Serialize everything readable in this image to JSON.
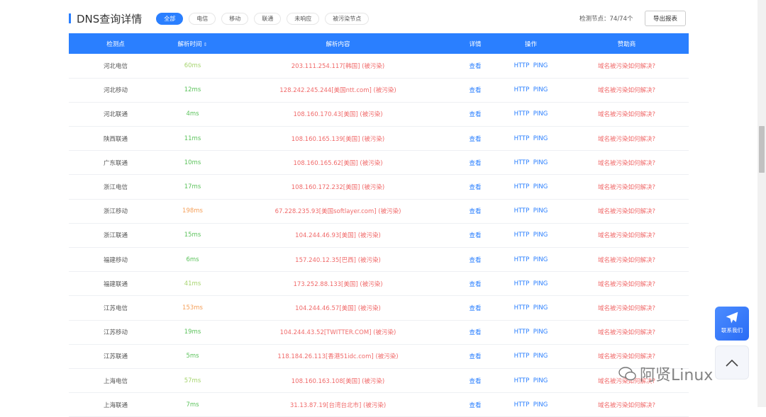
{
  "title": "DNS查询详情",
  "filters": [
    "全部",
    "电信",
    "移动",
    "联通",
    "未响应",
    "被污染节点"
  ],
  "active_filter": "全部",
  "nodes_label": "检测节点：74/74个",
  "export_label": "导出报表",
  "columns": [
    "检测点",
    "解析时间",
    "解析内容",
    "详情",
    "操作",
    "赞助商"
  ],
  "rows": [
    {
      "loc": "河北电信",
      "time": "60ms",
      "ip": "203.111.254.117[韩国]",
      "status": "(被污染)"
    },
    {
      "loc": "河北移动",
      "time": "12ms",
      "ip": "128.242.245.244[美国ntt.com]",
      "status": "(被污染)"
    },
    {
      "loc": "河北联通",
      "time": "4ms",
      "ip": "108.160.170.43[美国]",
      "status": "(被污染)"
    },
    {
      "loc": "陕西联通",
      "time": "11ms",
      "ip": "108.160.165.139[美国]",
      "status": "(被污染)"
    },
    {
      "loc": "广东联通",
      "time": "10ms",
      "ip": "108.160.165.62[美国]",
      "status": "(被污染)"
    },
    {
      "loc": "浙江电信",
      "time": "17ms",
      "ip": "108.160.172.232[美国]",
      "status": "(被污染)"
    },
    {
      "loc": "浙江移动",
      "time": "198ms",
      "ip": "67.228.235.93[美国softlayer.com]",
      "status": "(被污染)"
    },
    {
      "loc": "浙江联通",
      "time": "15ms",
      "ip": "104.244.46.93[美国]",
      "status": "(被污染)"
    },
    {
      "loc": "福建移动",
      "time": "6ms",
      "ip": "157.240.12.35[巴西]",
      "status": "(被污染)"
    },
    {
      "loc": "福建联通",
      "time": "41ms",
      "ip": "173.252.88.133[美国]",
      "status": "(被污染)"
    },
    {
      "loc": "江苏电信",
      "time": "153ms",
      "ip": "104.244.46.57[美国]",
      "status": "(被污染)"
    },
    {
      "loc": "江苏移动",
      "time": "19ms",
      "ip": "104.244.43.52[TWITTER.COM]",
      "status": "(被污染)"
    },
    {
      "loc": "江苏联通",
      "time": "5ms",
      "ip": "118.184.26.113[香港51idc.com]",
      "status": "(被污染)"
    },
    {
      "loc": "上海电信",
      "time": "57ms",
      "ip": "108.160.163.108[美国]",
      "status": "(被污染)"
    },
    {
      "loc": "上海联通",
      "time": "7ms",
      "ip": "31.13.87.19[台湾台北市]",
      "status": "(被污染)"
    }
  ],
  "detail_label": "查看",
  "op_http": "HTTP",
  "op_ping": "PING",
  "sponsor_label": "域名被污染如何解决?",
  "contact_label": "联系我们",
  "watermark": "阿贤Linux",
  "colors": {
    "accent": "#2a7fff",
    "polluted": "#f06a6a",
    "fast": "#5cc35c",
    "medium": "#a6d46e",
    "slow": "#f5a05a"
  }
}
